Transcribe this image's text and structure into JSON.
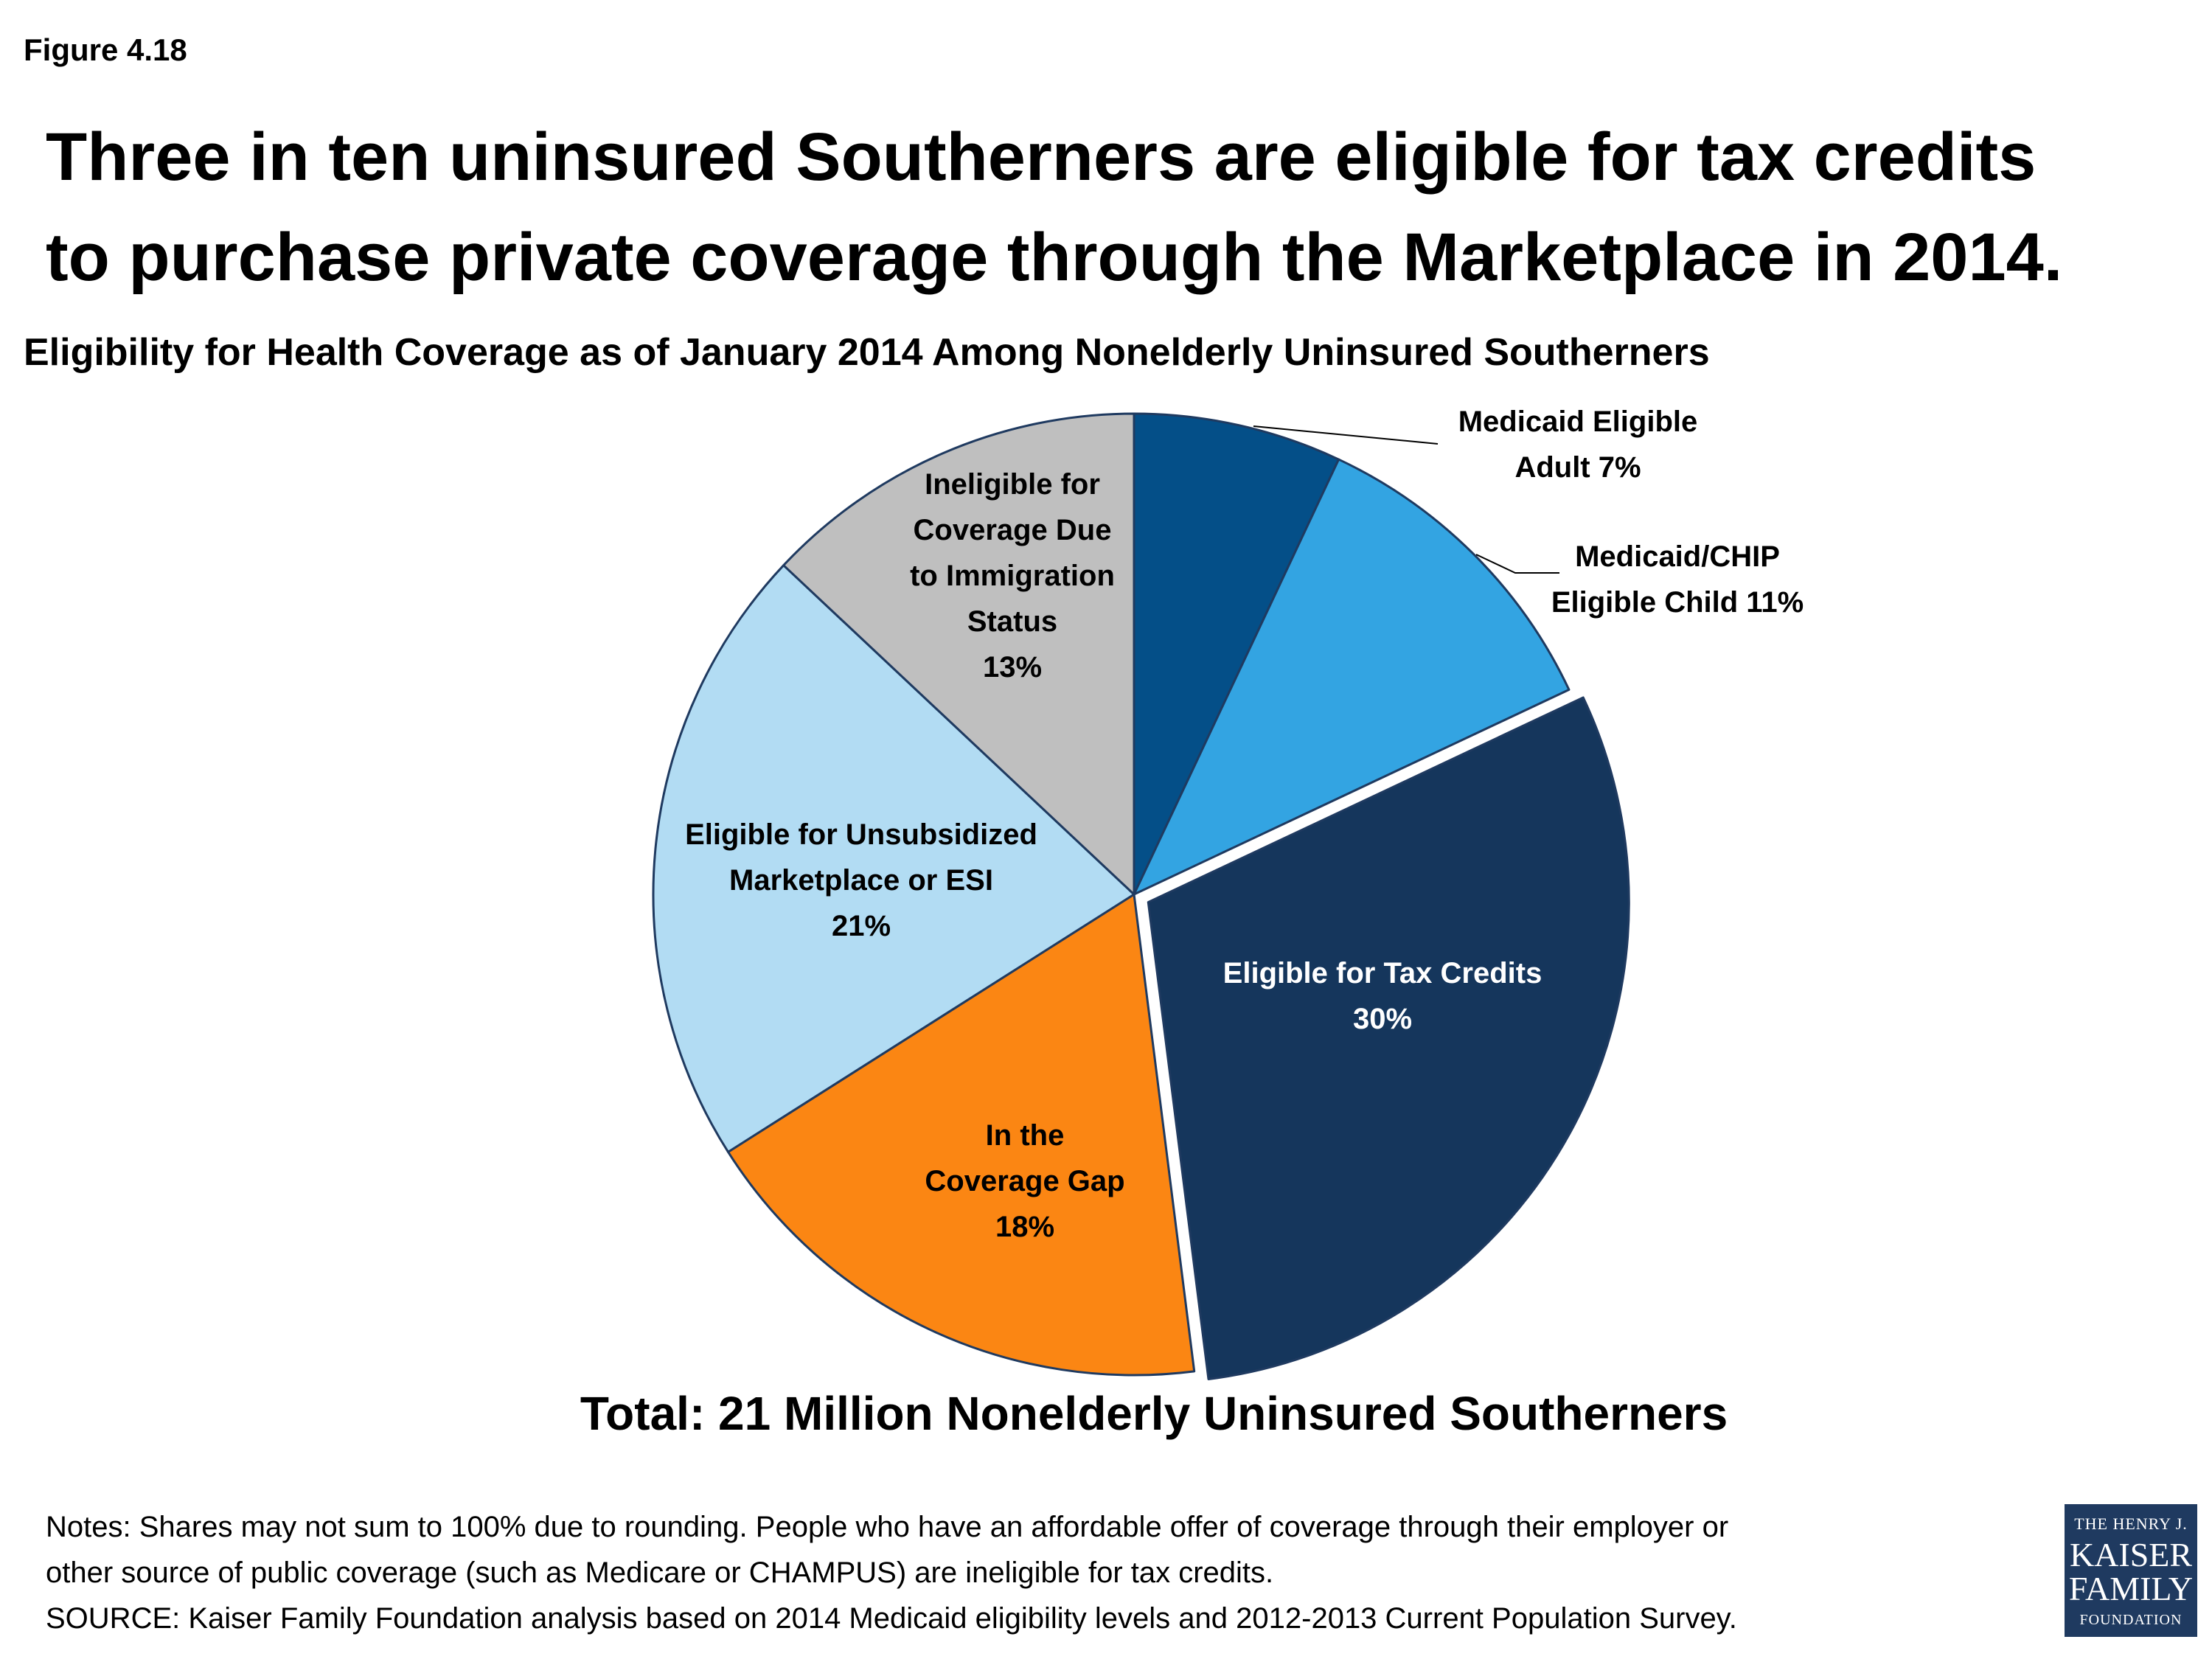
{
  "figure_label": "Figure 4.18",
  "title_lines": [
    "Three in ten uninsured Southerners are eligible for tax credits",
    "to purchase private coverage through the Marketplace in 2014."
  ],
  "chart_data": {
    "type": "pie",
    "title": "Eligibility for Health Coverage as of January 2014 Among Nonelderly Uninsured Southerners",
    "total_label": "Total: 21 Million Nonelderly Uninsured Southerners",
    "start_angle_deg": 0,
    "direction": "clockwise",
    "exploded": "Eligible for Tax Credits",
    "slices": [
      {
        "key": "medicaid-adult",
        "label_lines": [
          "Medicaid Eligible",
          "Adult  7%"
        ],
        "value": 7,
        "color": "#044f88",
        "text_color": "#000000",
        "label_position": "outside"
      },
      {
        "key": "medicaid-child",
        "label_lines": [
          "Medicaid/CHIP",
          "Eligible Child  11%"
        ],
        "value": 11,
        "color": "#33a4e2",
        "text_color": "#000000",
        "label_position": "outside"
      },
      {
        "key": "tax-credits",
        "label_lines": [
          "Eligible for Tax Credits",
          "30%"
        ],
        "value": 30,
        "color": "#15365c",
        "text_color": "#ffffff",
        "label_position": "inside"
      },
      {
        "key": "coverage-gap",
        "label_lines": [
          "In the",
          "Coverage Gap",
          "18%"
        ],
        "value": 18,
        "color": "#fb8613",
        "text_color": "#000000",
        "label_position": "inside"
      },
      {
        "key": "unsubsidized",
        "label_lines": [
          "Eligible for Unsubsidized",
          "Marketplace or ESI",
          "21%"
        ],
        "value": 21,
        "color": "#b2dcf3",
        "text_color": "#000000",
        "label_position": "inside"
      },
      {
        "key": "immigration",
        "label_lines": [
          "Ineligible for",
          "Coverage Due",
          "to Immigration",
          "Status",
          "13%"
        ],
        "value": 13,
        "color": "#bfbfbf",
        "text_color": "#000000",
        "label_position": "inside"
      }
    ]
  },
  "notes_lines": [
    "Notes: Shares may not sum to 100% due to rounding. People who have an affordable offer of coverage through their employer or",
    "other source of public coverage (such as Medicare or CHAMPUS) are ineligible for tax credits.",
    "SOURCE: Kaiser Family Foundation analysis based on 2014 Medicaid eligibility levels and 2012-2013 Current Population Survey."
  ],
  "logo": {
    "line1": "THE HENRY J.",
    "line2": "KAISER",
    "line3": "FAMILY",
    "line4": "FOUNDATION"
  }
}
